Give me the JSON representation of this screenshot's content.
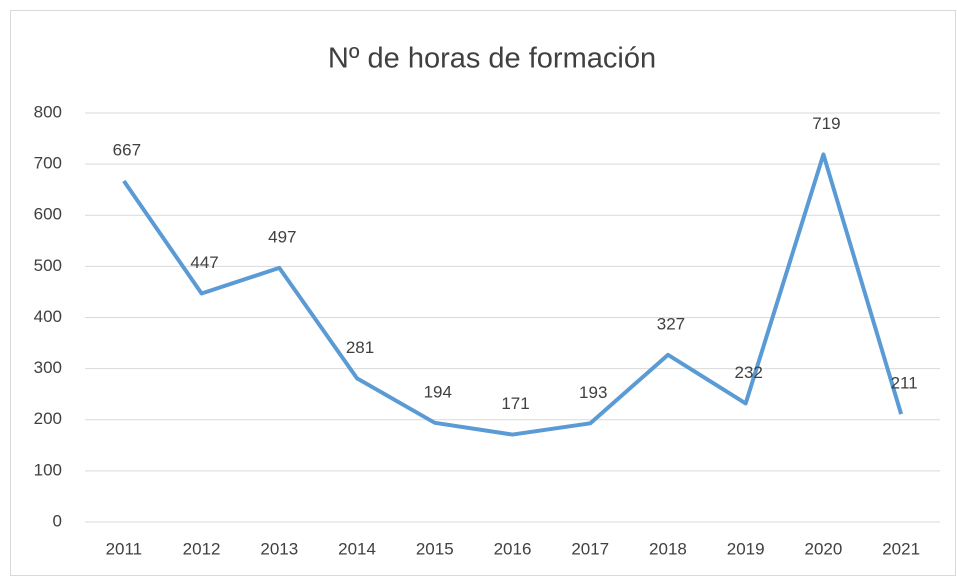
{
  "chart_data": {
    "type": "line",
    "title": "Nº de horas de formación",
    "categories": [
      "2011",
      "2012",
      "2013",
      "2014",
      "2015",
      "2016",
      "2017",
      "2018",
      "2019",
      "2020",
      "2021"
    ],
    "values": [
      667,
      447,
      497,
      281,
      194,
      171,
      193,
      327,
      232,
      719,
      211
    ],
    "color": "#5b9bd5",
    "ylim": [
      0,
      800
    ],
    "yticks": [
      0,
      100,
      200,
      300,
      400,
      500,
      600,
      700,
      800
    ],
    "grid": true
  }
}
